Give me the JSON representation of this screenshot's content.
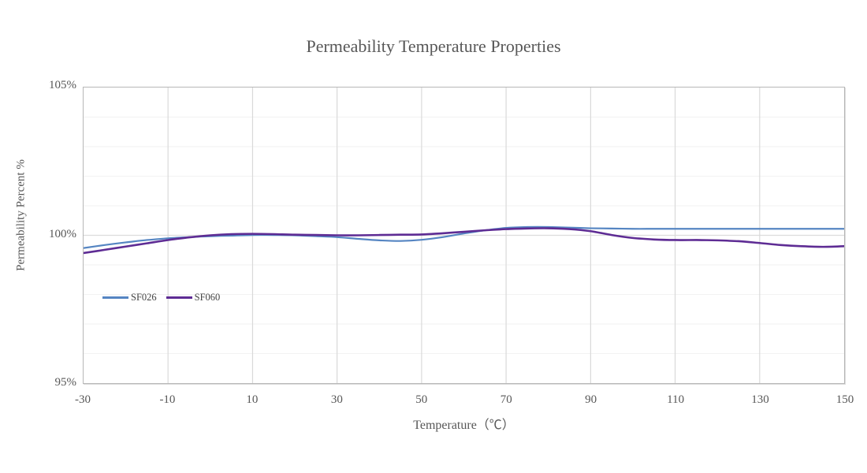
{
  "chart_data": {
    "type": "line",
    "title": "Permeability Temperature Properties",
    "xlabel": "Temperature（℃）",
    "ylabel": "Permeability Percent %",
    "xlim": [
      -30,
      150
    ],
    "ylim": [
      95,
      105
    ],
    "xticks": [
      -30,
      -10,
      10,
      30,
      50,
      70,
      90,
      110,
      130,
      150
    ],
    "yticks": [
      105,
      100,
      95
    ],
    "ytick_labels": [
      "105%",
      "100%",
      "95%"
    ],
    "grid": {
      "border_color": "#b7b7b7",
      "vertical_color": "#d9d9d9",
      "major_horizontal_color": "#dcdcdc",
      "minor_horizontal_color": "#f2f2f2",
      "minor_step": 1
    },
    "legend_position": "inside-left-below-center",
    "x": [
      -30,
      -25,
      -20,
      -15,
      -10,
      -5,
      0,
      5,
      10,
      15,
      20,
      25,
      30,
      35,
      40,
      45,
      50,
      55,
      60,
      65,
      70,
      75,
      80,
      85,
      90,
      95,
      100,
      105,
      110,
      115,
      120,
      125,
      130,
      135,
      140,
      145,
      150
    ],
    "series": [
      {
        "name": "SF026",
        "color": "#5585c2",
        "stroke_width": 2.2,
        "values": [
          99.57,
          99.67,
          99.76,
          99.84,
          99.9,
          99.94,
          99.97,
          99.99,
          100.01,
          100.01,
          100.0,
          99.97,
          99.94,
          99.88,
          99.83,
          99.81,
          99.85,
          99.94,
          100.06,
          100.17,
          100.25,
          100.28,
          100.28,
          100.26,
          100.24,
          100.23,
          100.22,
          100.22,
          100.22,
          100.22,
          100.22,
          100.22,
          100.22,
          100.22,
          100.22,
          100.22,
          100.22
        ]
      },
      {
        "name": "SF060",
        "color": "#5e2c94",
        "stroke_width": 2.6,
        "values": [
          99.4,
          99.51,
          99.62,
          99.73,
          99.84,
          99.93,
          100.0,
          100.04,
          100.05,
          100.04,
          100.02,
          100.01,
          100.0,
          100.0,
          100.01,
          100.02,
          100.03,
          100.07,
          100.12,
          100.17,
          100.21,
          100.23,
          100.24,
          100.21,
          100.14,
          100.01,
          99.91,
          99.86,
          99.84,
          99.84,
          99.83,
          99.8,
          99.74,
          99.67,
          99.63,
          99.61,
          99.63
        ]
      }
    ],
    "text_color": "#575757"
  }
}
